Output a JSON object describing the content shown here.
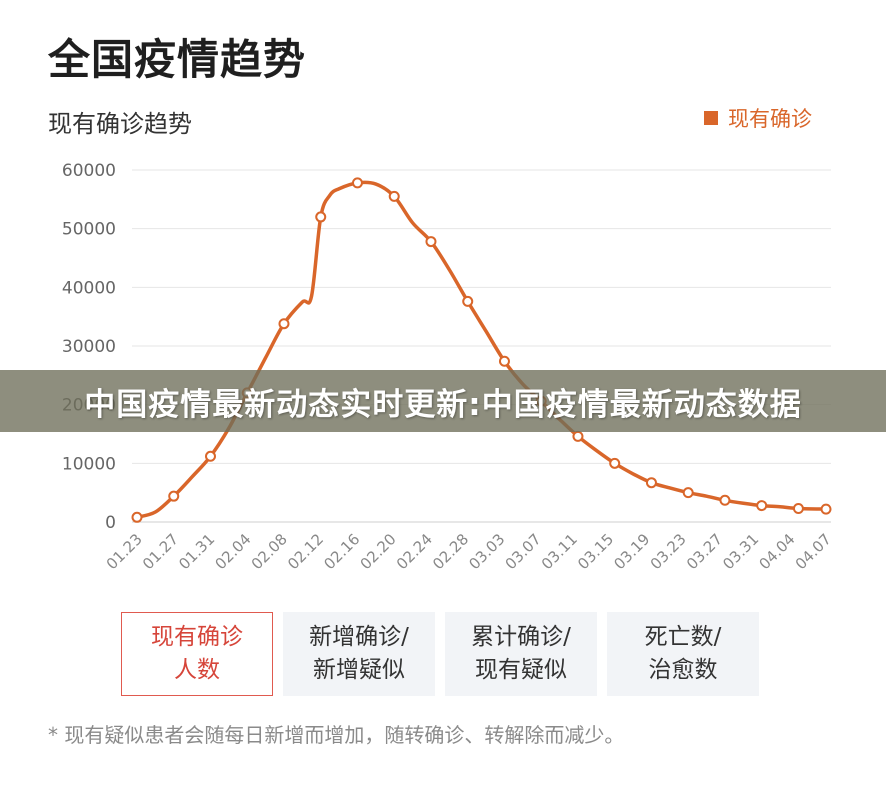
{
  "page": {
    "title": "全国疫情趋势",
    "chart_subtitle": "现有确诊趋势",
    "legend_label": "现有确诊"
  },
  "overlay": {
    "text": "中国疫情最新动态实时更新:中国疫情最新动态数据"
  },
  "tabs": [
    {
      "line1": "现有确诊",
      "line2": "人数",
      "active": true
    },
    {
      "line1": "新增确诊/",
      "line2": "新增疑似",
      "active": false
    },
    {
      "line1": "累计确诊/",
      "line2": "现有疑似",
      "active": false
    },
    {
      "line1": "死亡数/",
      "line2": "治愈数",
      "active": false
    }
  ],
  "footnote": "* 现有疑似患者会随每日新增而增加，随转确诊、转解除而减少。",
  "colors": {
    "series": "#d9662a",
    "grid": "#e6e6e6",
    "axis_text": "#666666",
    "active_tab": "#e05a4f"
  },
  "chart_data": {
    "type": "line",
    "title": "现有确诊趋势",
    "xlabel": "",
    "ylabel": "",
    "ylim": [
      0,
      60000
    ],
    "yticks": [
      "0",
      "10000",
      "20000",
      "30000",
      "40000",
      "50000",
      "60000"
    ],
    "x_tick_labels": [
      "01.23",
      "01.27",
      "01.31",
      "02.04",
      "02.08",
      "02.12",
      "02.16",
      "02.20",
      "02.24",
      "02.28",
      "03.03",
      "03.07",
      "03.11",
      "03.15",
      "03.19",
      "03.23",
      "03.27",
      "03.31",
      "04.04",
      "04.07"
    ],
    "x_start": "2020-01-23",
    "x_end": "2020-04-07",
    "grid": true,
    "legend": "top-right",
    "series": [
      {
        "name": "现有确诊",
        "points": [
          [
            "2020-01-23",
            800
          ],
          [
            "2020-01-25",
            1700
          ],
          [
            "2020-01-27",
            4400
          ],
          [
            "2020-01-29",
            7700
          ],
          [
            "2020-01-31",
            11200
          ],
          [
            "2020-02-02",
            16000
          ],
          [
            "2020-02-04",
            22000
          ],
          [
            "2020-02-06",
            28000
          ],
          [
            "2020-02-08",
            33800
          ],
          [
            "2020-02-10",
            37500
          ],
          [
            "2020-02-11",
            38500
          ],
          [
            "2020-02-12",
            52000
          ],
          [
            "2020-02-13",
            55700
          ],
          [
            "2020-02-14",
            56800
          ],
          [
            "2020-02-16",
            57800
          ],
          [
            "2020-02-18",
            57600
          ],
          [
            "2020-02-20",
            55500
          ],
          [
            "2020-02-22",
            51000
          ],
          [
            "2020-02-24",
            47800
          ],
          [
            "2020-02-26",
            43000
          ],
          [
            "2020-02-28",
            37600
          ],
          [
            "2020-03-01",
            32500
          ],
          [
            "2020-03-03",
            27400
          ],
          [
            "2020-03-05",
            23500
          ],
          [
            "2020-03-07",
            20600
          ],
          [
            "2020-03-09",
            17500
          ],
          [
            "2020-03-11",
            14600
          ],
          [
            "2020-03-13",
            12200
          ],
          [
            "2020-03-15",
            10000
          ],
          [
            "2020-03-17",
            8200
          ],
          [
            "2020-03-19",
            6700
          ],
          [
            "2020-03-21",
            5800
          ],
          [
            "2020-03-23",
            5000
          ],
          [
            "2020-03-25",
            4400
          ],
          [
            "2020-03-27",
            3700
          ],
          [
            "2020-03-29",
            3200
          ],
          [
            "2020-03-31",
            2800
          ],
          [
            "2020-04-02",
            2600
          ],
          [
            "2020-04-04",
            2300
          ],
          [
            "2020-04-07",
            2200
          ]
        ],
        "marked_points": [
          [
            "2020-01-23",
            800
          ],
          [
            "2020-01-27",
            4400
          ],
          [
            "2020-01-31",
            11200
          ],
          [
            "2020-02-04",
            22000
          ],
          [
            "2020-02-08",
            33800
          ],
          [
            "2020-02-12",
            52000
          ],
          [
            "2020-02-16",
            57800
          ],
          [
            "2020-02-20",
            55500
          ],
          [
            "2020-02-24",
            47800
          ],
          [
            "2020-02-28",
            37600
          ],
          [
            "2020-03-03",
            27400
          ],
          [
            "2020-03-07",
            20600
          ],
          [
            "2020-03-11",
            14600
          ],
          [
            "2020-03-15",
            10000
          ],
          [
            "2020-03-19",
            6700
          ],
          [
            "2020-03-23",
            5000
          ],
          [
            "2020-03-27",
            3700
          ],
          [
            "2020-03-31",
            2800
          ],
          [
            "2020-04-04",
            2300
          ],
          [
            "2020-04-07",
            2200
          ]
        ]
      }
    ]
  }
}
